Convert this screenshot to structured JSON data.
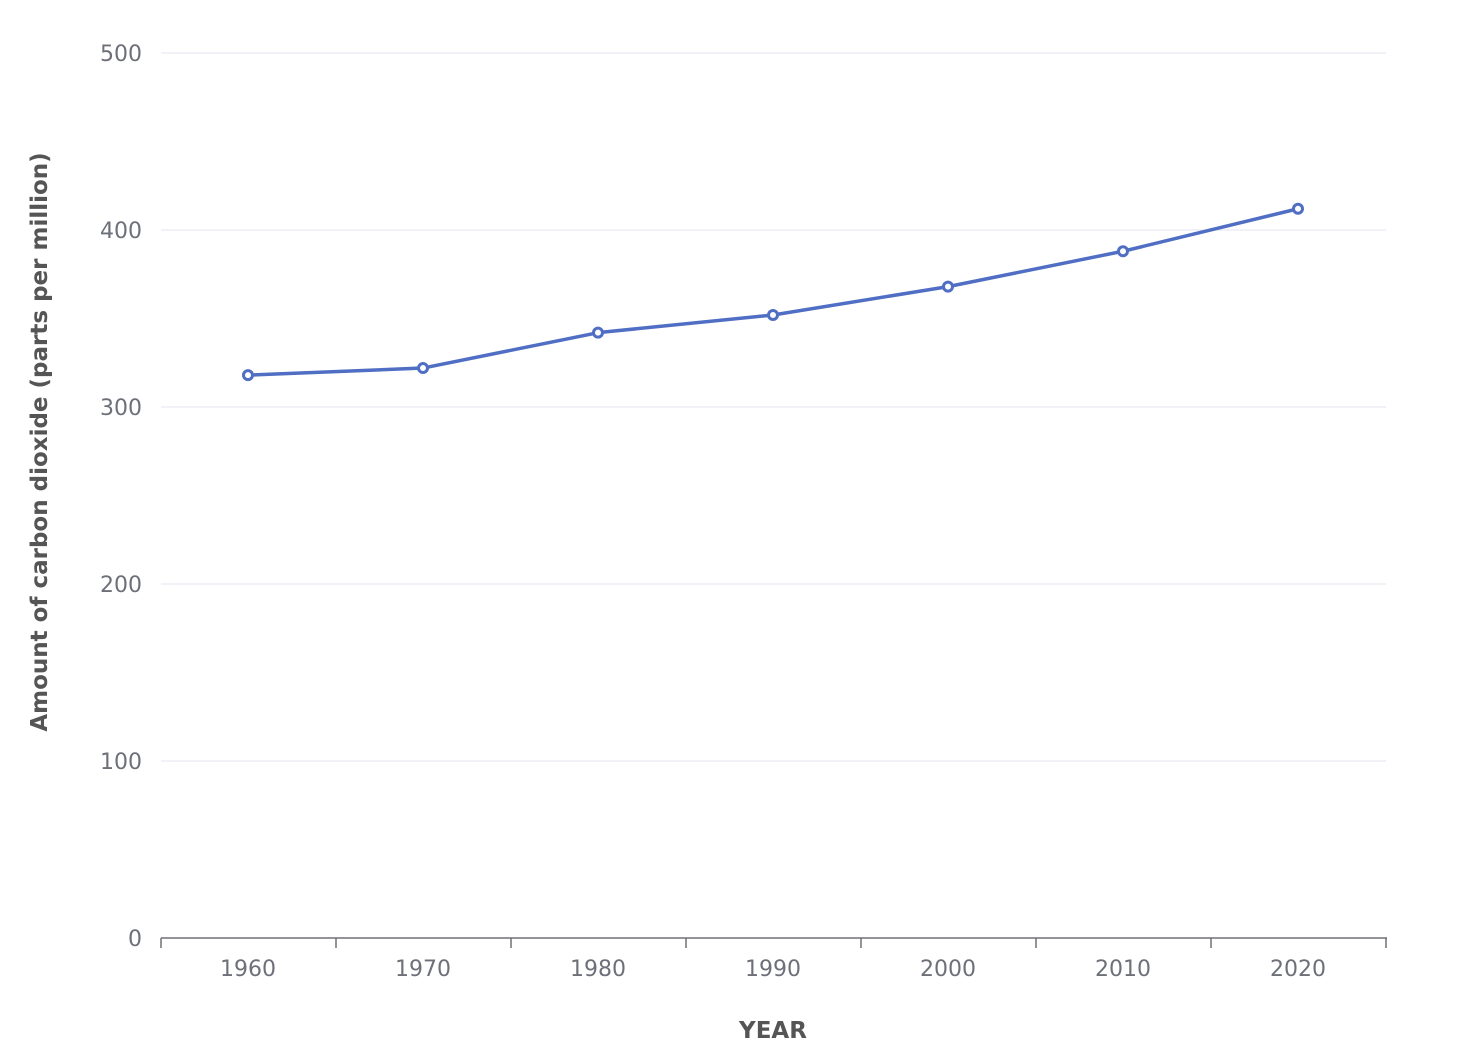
{
  "chart_data": {
    "type": "line",
    "x": [
      1960,
      1970,
      1980,
      1990,
      2000,
      2010,
      2020
    ],
    "categories": [
      "1960",
      "1970",
      "1980",
      "1990",
      "2000",
      "2010",
      "2020"
    ],
    "series": [
      {
        "values": [
          318,
          322,
          342,
          352,
          368,
          388,
          412
        ]
      }
    ],
    "xlabel": "YEAR",
    "ylabel": "Amount of carbon dioxide (parts per million)",
    "ylim": [
      0,
      500
    ],
    "yticks": [
      0,
      100,
      200,
      300,
      400,
      500
    ],
    "grid": true,
    "legend": "none",
    "colors": {
      "line": "#4f6ec4"
    }
  }
}
